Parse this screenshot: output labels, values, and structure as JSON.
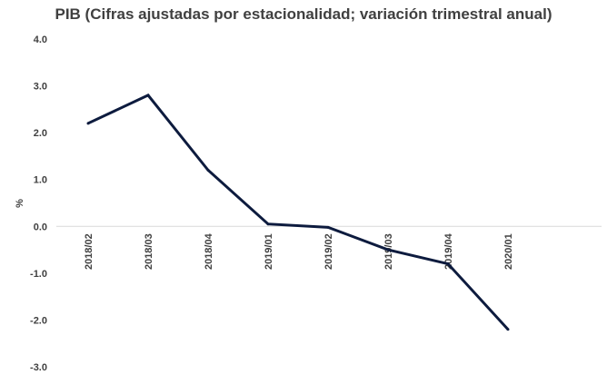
{
  "chart_data": {
    "type": "line",
    "title": "PIB (Cifras ajustadas por estacionalidad; variación trimestral anual)",
    "xlabel": "",
    "ylabel": "%",
    "categories": [
      "2018/02",
      "2018/03",
      "2018/04",
      "2019/01",
      "2019/02",
      "2019/03",
      "2019/04",
      "2020/01"
    ],
    "series": [
      {
        "values": [
          2.2,
          2.8,
          1.2,
          0.05,
          -0.02,
          -0.5,
          -0.8,
          -2.2
        ]
      }
    ],
    "ylim": [
      -3.0,
      4.0
    ],
    "yticks": [
      "4.0",
      "3.0",
      "2.0",
      "1.0",
      "0.0",
      "-1.0",
      "-2.0",
      "-3.0"
    ],
    "grid": false,
    "legend": "none",
    "colors": {
      "line": "#0d1b3e",
      "title": "#404040",
      "tick_label": "#404040",
      "axis": "#d9d9d9"
    }
  }
}
